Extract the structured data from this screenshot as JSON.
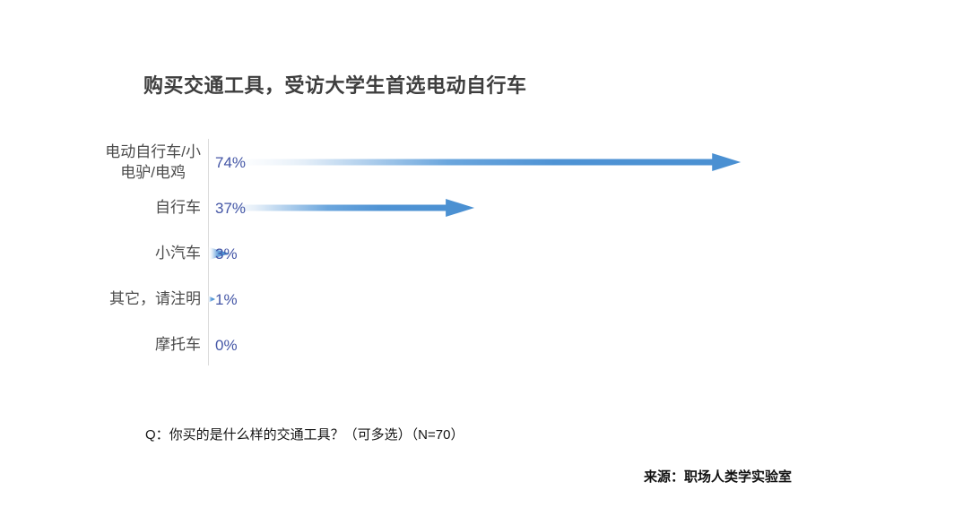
{
  "page": {
    "background": "#ffffff"
  },
  "chart_data": {
    "type": "bar",
    "orientation": "horizontal",
    "bar_shape": "gradient-arrow",
    "title": "购买交通工具，受访大学生首选电动自行车",
    "categories": [
      "电动自行车/小电驴/电鸡",
      "自行车",
      "小汽车",
      "其它，请注明",
      "摩托车"
    ],
    "category_lines": [
      [
        "电动自行车/小",
        "电驴/电鸡"
      ],
      [
        "自行车"
      ],
      [
        "小汽车"
      ],
      [
        "其它，请注明"
      ],
      [
        "摩托车"
      ]
    ],
    "values": [
      74,
      37,
      3,
      1,
      0
    ],
    "value_labels": [
      "74%",
      "37%",
      "3%",
      "1%",
      "0%"
    ],
    "xlabel": "",
    "ylabel": "",
    "xlim": [
      0,
      100
    ],
    "grid": false,
    "legend": "none",
    "colors": {
      "bar_blue": "#4f93d4",
      "bar_gradient_start": "#ffffff",
      "value_text": "#4456a6",
      "category_text": "#4c4c4c",
      "axis_line": "#dcdcdc",
      "title_text": "#3e3e3e"
    }
  },
  "footer": {
    "question": "Q：你买的是什么样的交通工具？（可多选）（N=70）",
    "source": "来源：职场人类学实验室"
  }
}
